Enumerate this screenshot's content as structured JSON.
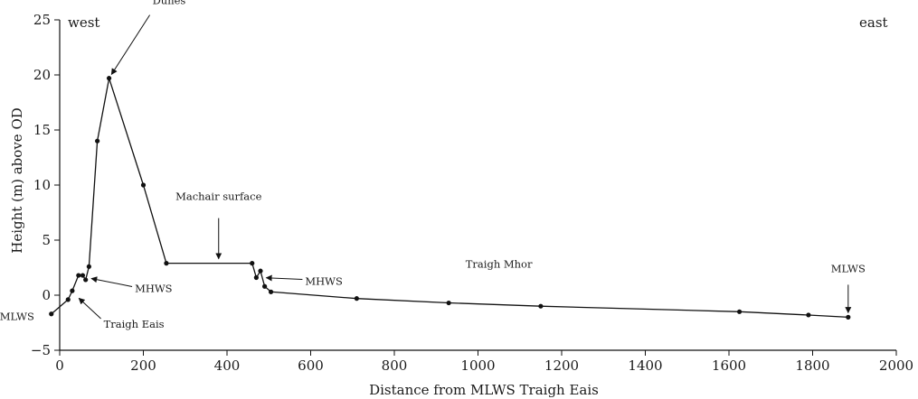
{
  "chart_data": {
    "type": "line",
    "xlabel": "Distance from MLWS Traigh Eais",
    "ylabel": "Height (m) above OD",
    "xlim": [
      0,
      2000
    ],
    "ylim": [
      -5,
      25
    ],
    "xticks": [
      0,
      200,
      400,
      600,
      800,
      1000,
      1200,
      1400,
      1600,
      1800,
      2000
    ],
    "yticks": [
      -5,
      0,
      5,
      10,
      15,
      20,
      25
    ],
    "grid": false,
    "corner_labels": {
      "left": "west",
      "right": "east"
    },
    "series": [
      {
        "points": [
          [
            -20,
            -1.7
          ],
          [
            20,
            -0.4
          ],
          [
            30,
            0.4
          ],
          [
            45,
            1.8
          ],
          [
            55,
            1.8
          ],
          [
            62,
            1.4
          ],
          [
            70,
            2.6
          ],
          [
            90,
            14
          ],
          [
            118,
            19.7
          ],
          [
            200,
            10
          ],
          [
            255,
            2.9
          ],
          [
            460,
            2.9
          ],
          [
            470,
            1.6
          ],
          [
            480,
            2.2
          ],
          [
            490,
            0.8
          ],
          [
            505,
            0.3
          ],
          [
            710,
            -0.3
          ],
          [
            930,
            -0.7
          ],
          [
            1150,
            -1.0
          ],
          [
            1625,
            -1.5
          ],
          [
            1790,
            -1.8
          ],
          [
            1885,
            -2.0
          ]
        ]
      }
    ],
    "annotations": [
      {
        "text": "Dunes",
        "point": [
          118,
          19.7
        ]
      },
      {
        "text": "Machair surface",
        "point": [
          380,
          2.9
        ]
      },
      {
        "text": "MHWS",
        "point": [
          65,
          1.6
        ]
      },
      {
        "text": "MHWS",
        "point": [
          483,
          1.6
        ]
      },
      {
        "text": "MLWS",
        "point": [
          -20,
          -1.7
        ]
      },
      {
        "text": "Traigh Eais",
        "point": [
          38,
          0.0
        ]
      },
      {
        "text": "Traigh Mhor",
        "point": [
          1050,
          -0.6
        ]
      },
      {
        "text": "MLWS",
        "point": [
          1885,
          -2.0
        ]
      }
    ]
  }
}
